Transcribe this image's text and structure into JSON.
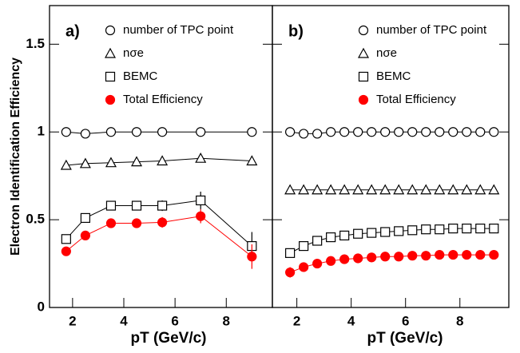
{
  "chart_data": [
    {
      "type": "scatter",
      "panel_label": "a)",
      "y_label": "Electron Identification Efficiency",
      "x_label": "pT (GeV/c)",
      "xlim": [
        1.1,
        9.8
      ],
      "xticks": [
        2,
        4,
        6,
        8
      ],
      "ylim": [
        0,
        1.72
      ],
      "yticks": [
        0,
        0.5,
        1,
        1.5
      ],
      "x": [
        1.75,
        2.5,
        3.5,
        4.5,
        5.5,
        7,
        9
      ],
      "series": [
        {
          "name": "number of TPC point",
          "marker": "circle",
          "color": "#000000",
          "values": [
            1.0,
            0.99,
            1.0,
            1.0,
            1.0,
            1.0,
            1.0
          ]
        },
        {
          "name": "nσe",
          "marker": "triangle",
          "color": "#000000",
          "values": [
            0.81,
            0.82,
            0.825,
            0.83,
            0.835,
            0.85,
            0.835
          ]
        },
        {
          "name": "BEMC",
          "marker": "square",
          "color": "#000000",
          "values": [
            0.39,
            0.51,
            0.58,
            0.58,
            0.58,
            0.61,
            0.35
          ],
          "errors": [
            null,
            null,
            null,
            null,
            0.03,
            0.05,
            0.08
          ]
        },
        {
          "name": "Total Efficiency",
          "marker": "dot",
          "color": "#ff0000",
          "values": [
            0.32,
            0.41,
            0.48,
            0.48,
            0.485,
            0.52,
            0.29
          ],
          "errors": [
            0.01,
            0.01,
            0.015,
            0.015,
            0.03,
            0.04,
            0.07
          ]
        }
      ]
    },
    {
      "type": "scatter",
      "panel_label": "b)",
      "x_label": "pT (GeV/c)",
      "xlim": [
        1.1,
        9.8
      ],
      "xticks": [
        2,
        4,
        6,
        8
      ],
      "ylim": [
        0,
        1.72
      ],
      "yticks": [
        0,
        0.5,
        1,
        1.5
      ],
      "x": [
        1.75,
        2.25,
        2.75,
        3.25,
        3.75,
        4.25,
        4.75,
        5.25,
        5.75,
        6.25,
        6.75,
        7.25,
        7.75,
        8.25,
        8.75,
        9.25
      ],
      "series": [
        {
          "name": "number of TPC point",
          "marker": "circle",
          "color": "#000000",
          "values": [
            1.0,
            0.99,
            0.99,
            1.0,
            1.0,
            1.0,
            1.0,
            1.0,
            1.0,
            1.0,
            1.0,
            1.0,
            1.0,
            1.0,
            1.0,
            1.0
          ]
        },
        {
          "name": "nσe",
          "marker": "triangle",
          "color": "#000000",
          "values": [
            0.67,
            0.67,
            0.67,
            0.67,
            0.67,
            0.67,
            0.67,
            0.67,
            0.67,
            0.67,
            0.67,
            0.67,
            0.67,
            0.67,
            0.67,
            0.67
          ]
        },
        {
          "name": "BEMC",
          "marker": "square",
          "color": "#000000",
          "values": [
            0.31,
            0.35,
            0.38,
            0.4,
            0.41,
            0.42,
            0.425,
            0.43,
            0.435,
            0.44,
            0.445,
            0.445,
            0.45,
            0.45,
            0.45,
            0.45
          ]
        },
        {
          "name": "Total Efficiency",
          "marker": "dot",
          "color": "#ff0000",
          "values": [
            0.2,
            0.23,
            0.25,
            0.265,
            0.275,
            0.28,
            0.285,
            0.29,
            0.29,
            0.295,
            0.295,
            0.3,
            0.3,
            0.3,
            0.3,
            0.3
          ],
          "errors": [
            0.03,
            null,
            null,
            null,
            null,
            null,
            null,
            null,
            null,
            null,
            null,
            null,
            null,
            null,
            null,
            null
          ]
        }
      ]
    }
  ]
}
